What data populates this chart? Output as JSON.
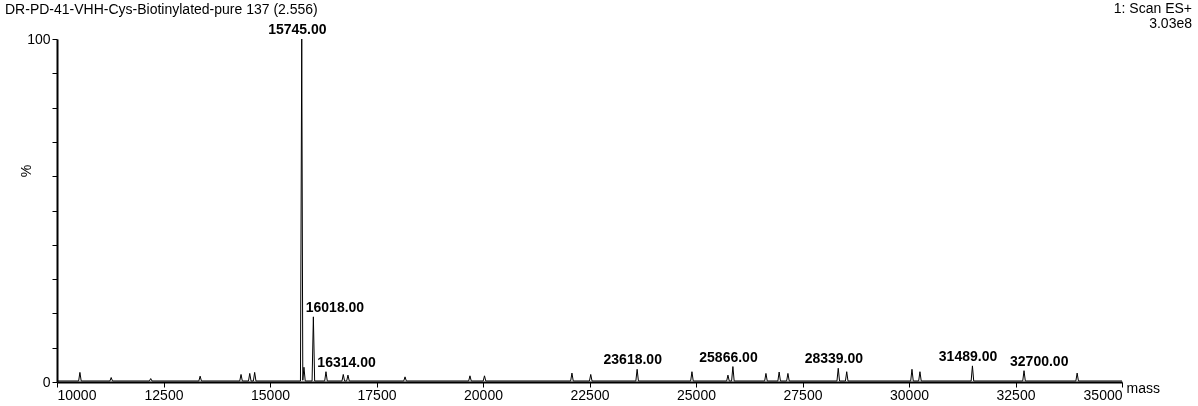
{
  "chart_data": {
    "type": "line",
    "title": "DR-PD-41-VHH-Cys-Biotinylated-pure  137 (2.556)",
    "xlabel": "mass",
    "ylabel": "%",
    "annotations": [
      {
        "text": "15745.00",
        "x": 15745,
        "y": 100
      },
      {
        "text": "16018.00",
        "x": 16018,
        "y": 19
      },
      {
        "text": "16314.00",
        "x": 16314,
        "y": 3
      },
      {
        "text": "23618.00",
        "x": 23618,
        "y": 3.7
      },
      {
        "text": "25866.00",
        "x": 25866,
        "y": 4.5
      },
      {
        "text": "28339.00",
        "x": 28339,
        "y": 4
      },
      {
        "text": "31489.00",
        "x": 31489,
        "y": 4.7
      },
      {
        "text": "32700.00",
        "x": 32700,
        "y": 3.3
      },
      "1: Scan ES+",
      "3.03e8"
    ],
    "x": [
      10000,
      10508,
      10538,
      10568,
      11242,
      11272,
      11302,
      12170,
      12200,
      12230,
      13330,
      13360,
      13390,
      14290,
      14320,
      14350,
      14495,
      14525,
      14555,
      14610,
      14640,
      14670,
      15715,
      15745,
      15770,
      15797,
      15827,
      15988,
      16018,
      16048,
      16284,
      16314,
      16344,
      16690,
      16720,
      16750,
      16800,
      16830,
      16860,
      18140,
      18170,
      18200,
      19664,
      19694,
      19724,
      20005,
      20035,
      20065,
      22058,
      22088,
      22118,
      22499,
      22529,
      22559,
      23588,
      23618,
      23648,
      24875,
      24905,
      24935,
      25720,
      25750,
      25780,
      25836,
      25866,
      25896,
      26612,
      26642,
      26672,
      26922,
      26952,
      26982,
      27128,
      27158,
      27188,
      28309,
      28339,
      28369,
      28508,
      28538,
      28568,
      30040,
      30070,
      30100,
      30227,
      30257,
      30287,
      31459,
      31489,
      31519,
      32670,
      32700,
      32730,
      33917,
      33947,
      33977,
      35000
    ],
    "series": [
      {
        "color": "#000000",
        "values": [
          0.3,
          0.3,
          2.8,
          0.3,
          0.3,
          1.3,
          0.3,
          0.3,
          1.0,
          0.3,
          0.3,
          1.7,
          0.3,
          0.3,
          2.2,
          0.3,
          0.3,
          2.5,
          0.3,
          0.3,
          2.8,
          0.3,
          0.3,
          100,
          0.5,
          4.3,
          0.3,
          0.3,
          19,
          0.3,
          0.3,
          3,
          0.3,
          0.3,
          2.2,
          0.3,
          0.3,
          2.0,
          0.3,
          0.3,
          1.5,
          0.3,
          0.3,
          1.8,
          0.3,
          0.3,
          1.8,
          0.3,
          0.3,
          2.6,
          0.3,
          0.3,
          2.2,
          0.3,
          0.3,
          3.7,
          0.3,
          0.3,
          3,
          0.3,
          0.3,
          2,
          0.3,
          0.3,
          4.5,
          0.3,
          0.3,
          2.5,
          0.3,
          0.3,
          2.9,
          0.3,
          0.3,
          2.5,
          0.3,
          0.3,
          4,
          0.3,
          0.3,
          3,
          0.3,
          0.3,
          3.7,
          0.3,
          0.3,
          3,
          0.3,
          0.3,
          4.7,
          0.3,
          0.3,
          3.3,
          0.3,
          0.3,
          2.6,
          0.3,
          0.3
        ]
      }
    ],
    "xlim": [
      10000,
      35000
    ],
    "xticks": [
      10000,
      12500,
      15000,
      17500,
      20000,
      22500,
      25000,
      27500,
      30000,
      32500,
      35000
    ],
    "ylim": [
      0,
      100
    ],
    "yticks": [
      0,
      {
        "value": 10,
        "label": null
      },
      {
        "value": 20,
        "label": null
      },
      {
        "value": 30,
        "label": null
      },
      {
        "value": 40,
        "label": null
      },
      {
        "value": 50,
        "label": null
      },
      {
        "value": 60,
        "label": null
      },
      {
        "value": 70,
        "label": null
      },
      {
        "value": 80,
        "label": null
      },
      {
        "value": 90,
        "label": null
      },
      100
    ],
    "grid": false,
    "marker": "none",
    "line_style": "solid"
  }
}
